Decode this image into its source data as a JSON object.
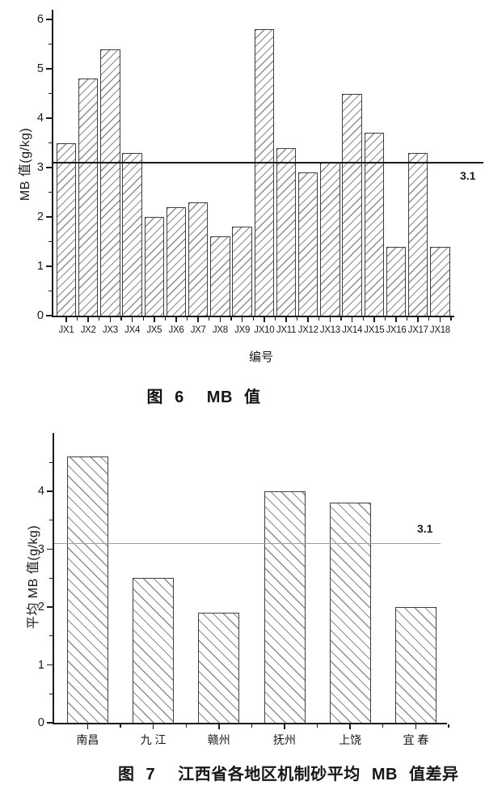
{
  "page": {
    "background": "#ffffff"
  },
  "colors": {
    "text": "#1a1a1a",
    "axis": "#1c1c1c",
    "bar_border": "#404040",
    "hatch": "#8c8c8c",
    "reference_line_dark": "#1c1c1c",
    "reference_line_gray": "#9e9e9e"
  },
  "chart_data": [
    {
      "type": "bar",
      "title": "图 6  MB 值",
      "xlabel": "编号",
      "ylabel": "MB 值(g/kg)",
      "categories": [
        "JX1",
        "JX2",
        "JX3",
        "JX4",
        "JX5",
        "JX6",
        "JX7",
        "JX8",
        "JX9",
        "JX10",
        "JX11",
        "JX12",
        "JX13",
        "JX14",
        "JX15",
        "JX16",
        "JX17",
        "JX18"
      ],
      "values": [
        3.5,
        4.8,
        5.4,
        3.3,
        2.0,
        2.2,
        2.3,
        1.6,
        1.8,
        5.8,
        3.4,
        2.9,
        3.1,
        4.5,
        3.7,
        1.4,
        3.3,
        1.4
      ],
      "ylim": [
        0,
        6.2
      ],
      "yticks": [
        0,
        1,
        2,
        3,
        4,
        5,
        6
      ],
      "minor_ticks_every": 0.5,
      "grid": false,
      "legend": "none",
      "hatch_direction": "/",
      "reference_line": {
        "value": 3.1,
        "label": "3.1",
        "style": "dark"
      }
    },
    {
      "type": "bar",
      "title": "图 7  江西省各地区机制砂平均 MB 值差异",
      "xlabel": "",
      "ylabel": "平均 MB 值(g/kg)",
      "categories": [
        "南昌",
        "九 江",
        "赣州",
        "抚州",
        "上饶",
        "宜 春"
      ],
      "values": [
        4.6,
        2.5,
        1.9,
        4.0,
        3.8,
        2.0
      ],
      "ylim": [
        0,
        5.0
      ],
      "yticks": [
        0,
        1,
        2,
        3,
        4
      ],
      "minor_ticks_every": 0.5,
      "grid": false,
      "legend": "none",
      "hatch_direction": "\\",
      "reference_line": {
        "value": 3.1,
        "label": "3.1",
        "style": "gray"
      }
    }
  ]
}
